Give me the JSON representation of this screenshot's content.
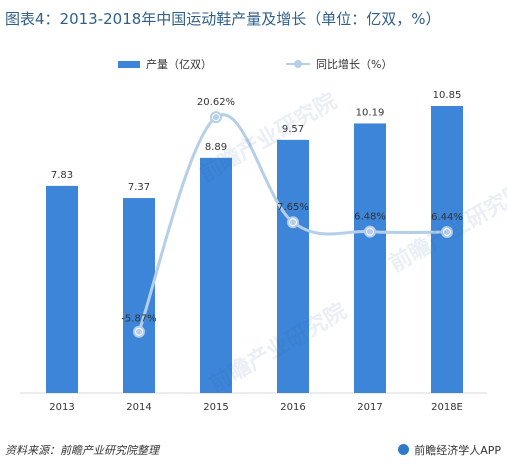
{
  "title": "图表4：2013-2018年中国运动鞋产量及增长（单位：亿双，%）",
  "legend": {
    "bar_label": "产量（亿双）",
    "line_label": "同比增长（%）"
  },
  "footer": {
    "source": "资料来源：前瞻产业研究院整理",
    "brand": "前瞻经济学人APP"
  },
  "watermark": "前瞻产业研究院",
  "colors": {
    "bar": "#3d85d8",
    "line": "#b5cfe8",
    "title": "#2f5f8a"
  },
  "chart_data": {
    "type": "bar",
    "title": "图表4：2013-2018年中国运动鞋产量及增长（单位：亿双，%）",
    "categories": [
      "2013",
      "2014",
      "2015",
      "2016",
      "2017",
      "2018E"
    ],
    "series": [
      {
        "name": "产量（亿双）",
        "type": "bar",
        "values": [
          7.83,
          7.37,
          8.89,
          9.57,
          10.19,
          10.85
        ],
        "labels": [
          "7.83",
          "7.37",
          "8.89",
          "9.57",
          "10.19",
          "10.85"
        ]
      },
      {
        "name": "同比增长（%）",
        "type": "line",
        "values": [
          null,
          -5.87,
          20.62,
          7.65,
          6.48,
          6.44
        ],
        "labels": [
          "",
          "-5.87%",
          "20.62%",
          "7.65%",
          "6.48%",
          "6.44%"
        ]
      }
    ],
    "legend_position": "top",
    "grid": false
  }
}
